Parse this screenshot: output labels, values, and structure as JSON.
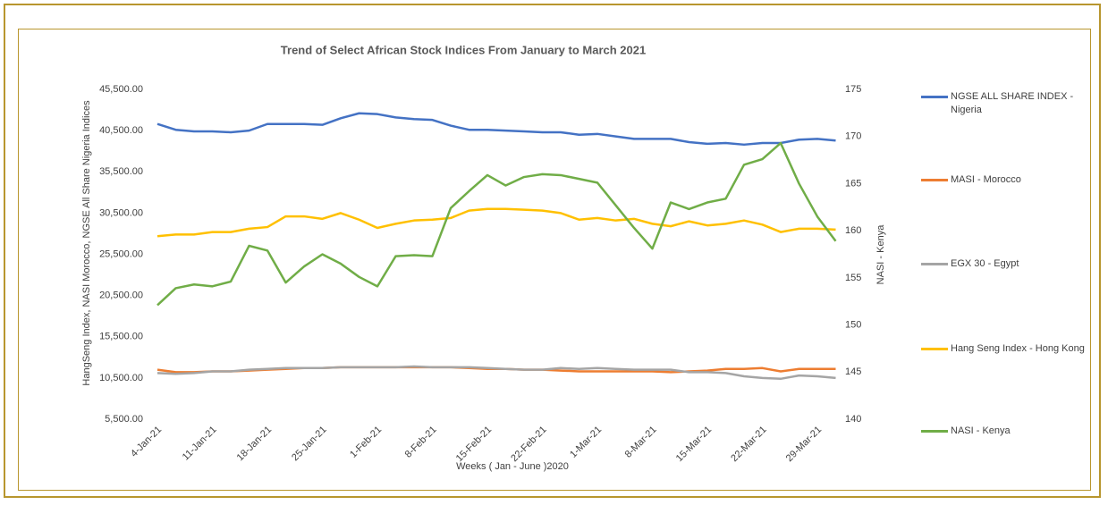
{
  "chart_data": {
    "type": "line",
    "title": "Trend of Select  African Stock Indices From January to March 2021",
    "x_label": "Weeks ( Jan - June )2020",
    "y_label": "HangSeng Index, NASI Morocco, NGSE All Share Nigeria Indices",
    "y2_label": "NASI - Kenya",
    "categories": [
      "4-Jan-21",
      null,
      null,
      "11-Jan-21",
      null,
      null,
      "18-Jan-21",
      null,
      null,
      "25-Jan-21",
      null,
      null,
      "1-Feb-21",
      null,
      null,
      "8-Feb-21",
      null,
      null,
      "15-Feb-21",
      null,
      null,
      "22-Feb-21",
      null,
      null,
      "1-Mar-21",
      null,
      null,
      "8-Mar-21",
      null,
      null,
      "15-Mar-21",
      null,
      null,
      "22-Mar-21",
      null,
      null,
      "29-Mar-21",
      null
    ],
    "ylim": [
      5500,
      45500
    ],
    "yticks": [
      {
        "value": 5500,
        "label": "5,500.00"
      },
      {
        "value": 10500,
        "label": "10,500.00"
      },
      {
        "value": 15500,
        "label": "15,500.00"
      },
      {
        "value": 20500,
        "label": "20,500.00"
      },
      {
        "value": 25500,
        "label": "25,500.00"
      },
      {
        "value": 30500,
        "label": "30,500.00"
      },
      {
        "value": 35500,
        "label": "35,500.00"
      },
      {
        "value": 40500,
        "label": "40,500.00"
      },
      {
        "value": 45500,
        "label": "45,500.00"
      }
    ],
    "y2lim": [
      140,
      175
    ],
    "y2ticks": [
      140,
      145,
      150,
      155,
      160,
      165,
      170,
      175
    ],
    "legend": "right",
    "series": [
      {
        "name": "NGSE ALL SHARE INDEX - Nigeria",
        "color": "#4472c4",
        "values": [
          41300,
          40600,
          40400,
          40400,
          40300,
          40500,
          41300,
          41300,
          41300,
          41200,
          42000,
          42600,
          42500,
          42100,
          41900,
          41800,
          41100,
          40600,
          40600,
          40500,
          40400,
          40300,
          40300,
          40000,
          40100,
          39800,
          39500,
          39500,
          39500,
          39100,
          38900,
          39000,
          38800,
          39000,
          39000,
          39400,
          39500,
          39300
        ]
      },
      {
        "name": "MASI - Morocco",
        "color": "#ed7d31",
        "values": [
          11500,
          11200,
          11200,
          11300,
          11300,
          11400,
          11500,
          11600,
          11700,
          11700,
          11800,
          11800,
          11800,
          11800,
          11800,
          11800,
          11800,
          11700,
          11600,
          11600,
          11500,
          11500,
          11400,
          11300,
          11300,
          11300,
          11300,
          11300,
          11200,
          11300,
          11400,
          11600,
          11600,
          11700,
          11300,
          11600,
          11600,
          11600
        ]
      },
      {
        "name": "EGX 30 - Egypt",
        "color": "#a5a5a5",
        "values": [
          11100,
          11000,
          11100,
          11300,
          11300,
          11500,
          11600,
          11700,
          11700,
          11700,
          11800,
          11800,
          11800,
          11800,
          11900,
          11800,
          11800,
          11800,
          11700,
          11600,
          11500,
          11500,
          11700,
          11600,
          11700,
          11600,
          11500,
          11500,
          11500,
          11200,
          11200,
          11100,
          10700,
          10500,
          10400,
          10800,
          10700,
          10500
        ]
      },
      {
        "name": "Hang Seng Index - Hong Kong",
        "color": "#ffc000",
        "values": [
          27700,
          27900,
          27900,
          28200,
          28200,
          28600,
          28800,
          30100,
          30100,
          29800,
          30500,
          29700,
          28700,
          29200,
          29600,
          29700,
          29900,
          30800,
          31000,
          31000,
          30900,
          30800,
          30500,
          29700,
          29900,
          29600,
          29800,
          29200,
          28900,
          29500,
          29000,
          29200,
          29600,
          29100,
          28200,
          28600,
          28600,
          28500
        ]
      },
      {
        "name": "NASI - Kenya",
        "color": "#70ad47",
        "axis": "y2",
        "values": [
          152.1,
          153.9,
          154.3,
          154.1,
          154.6,
          158.4,
          157.9,
          154.5,
          156.2,
          157.5,
          156.5,
          155.1,
          154.1,
          157.3,
          157.4,
          157.3,
          162.4,
          164.2,
          165.9,
          164.8,
          165.7,
          166.0,
          165.9,
          165.5,
          165.1,
          162.7,
          160.3,
          158.1,
          163.0,
          162.3,
          163.0,
          163.4,
          167.0,
          167.6,
          169.3,
          165.0,
          161.5,
          158.9
        ]
      }
    ]
  }
}
